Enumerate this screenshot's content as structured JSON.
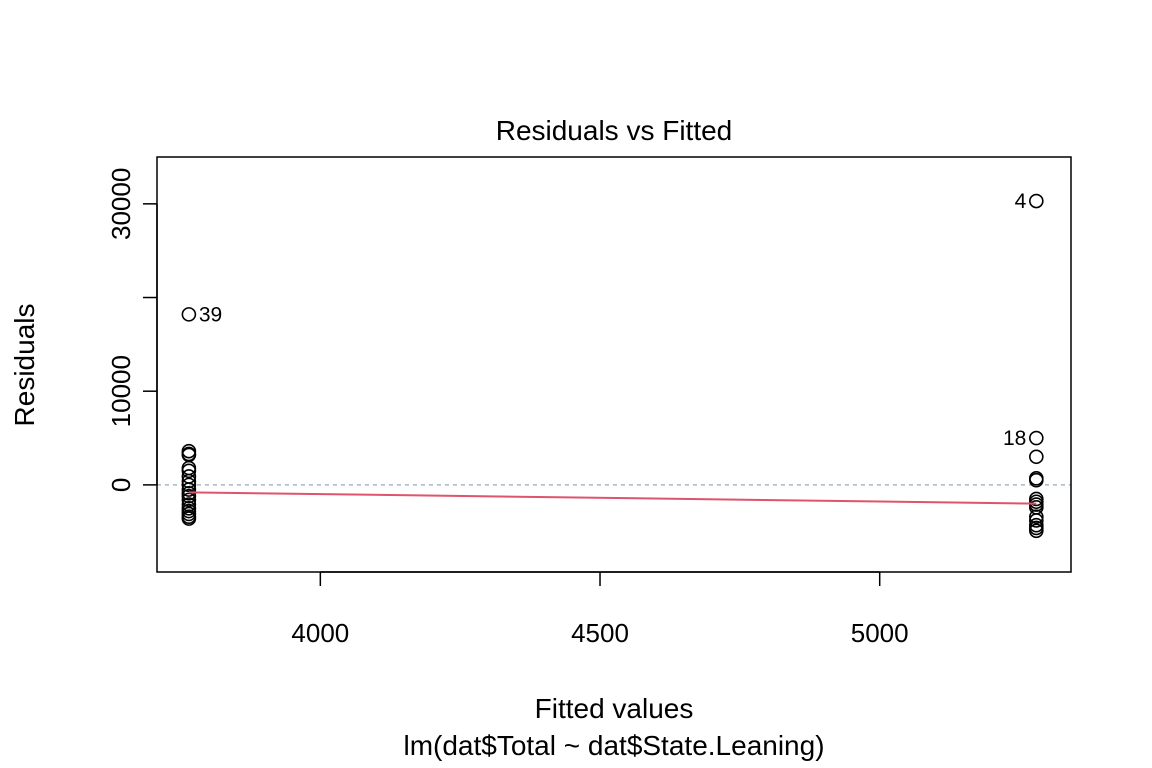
{
  "chart_data": {
    "type": "scatter",
    "title": "Residuals vs Fitted",
    "xlabel": "Fitted values",
    "subtitle": "lm(dat$Total ~ dat$State.Leaning)",
    "ylabel": "Residuals",
    "xlim": [
      3708,
      5342
    ],
    "ylim": [
      -9300,
      35000
    ],
    "x_ticks": [
      4000,
      4500,
      5000
    ],
    "x_tick_labels": [
      "4000",
      "4500",
      "5000"
    ],
    "y_ticks": [
      0,
      10000,
      20000,
      30000
    ],
    "y_tick_labels": [
      "0",
      "10000",
      "",
      "30000"
    ],
    "reference_line": {
      "y": 0,
      "color": "#a8b8c4",
      "style": "dashed"
    },
    "points": [
      {
        "x": 3765,
        "y": 18200,
        "label": "39"
      },
      {
        "x": 3765,
        "y": 3600
      },
      {
        "x": 3765,
        "y": 3300
      },
      {
        "x": 3765,
        "y": 3200
      },
      {
        "x": 3765,
        "y": 1800
      },
      {
        "x": 3765,
        "y": 1500
      },
      {
        "x": 3765,
        "y": 900
      },
      {
        "x": 3765,
        "y": 400
      },
      {
        "x": 3765,
        "y": 0
      },
      {
        "x": 3765,
        "y": -500
      },
      {
        "x": 3765,
        "y": -900
      },
      {
        "x": 3765,
        "y": -1200
      },
      {
        "x": 3765,
        "y": -1600
      },
      {
        "x": 3765,
        "y": -2100
      },
      {
        "x": 3765,
        "y": -2500
      },
      {
        "x": 3765,
        "y": -2800
      },
      {
        "x": 3765,
        "y": -3100
      },
      {
        "x": 3765,
        "y": -3400
      },
      {
        "x": 3765,
        "y": -3600
      },
      {
        "x": 5280,
        "y": 30300,
        "label": "4"
      },
      {
        "x": 5280,
        "y": 5000,
        "label": "18"
      },
      {
        "x": 5280,
        "y": 3000
      },
      {
        "x": 5280,
        "y": 700
      },
      {
        "x": 5280,
        "y": 500
      },
      {
        "x": 5280,
        "y": -1500
      },
      {
        "x": 5280,
        "y": -1800
      },
      {
        "x": 5280,
        "y": -2100
      },
      {
        "x": 5280,
        "y": -2400
      },
      {
        "x": 5280,
        "y": -3400
      },
      {
        "x": 5280,
        "y": -3800
      },
      {
        "x": 5280,
        "y": -4300
      },
      {
        "x": 5280,
        "y": -4600
      },
      {
        "x": 5280,
        "y": -4900
      }
    ],
    "smoother": {
      "color": "#df536b",
      "x": [
        3765,
        5280
      ],
      "y": [
        -800,
        -2000
      ]
    }
  }
}
